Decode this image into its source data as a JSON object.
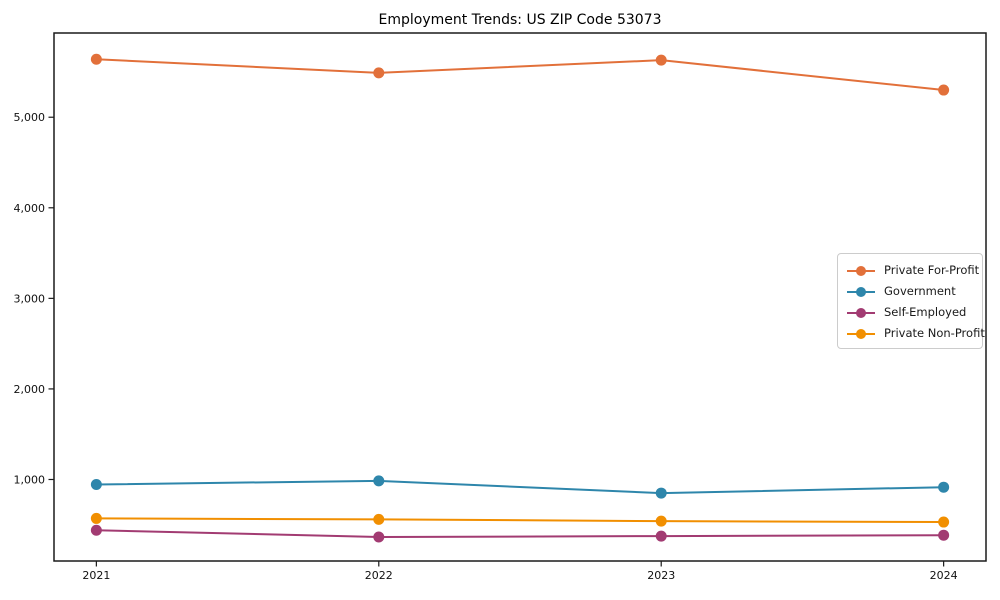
{
  "chart_data": {
    "type": "line",
    "title": "Employment Trends: US ZIP Code 53073",
    "x": [
      2021,
      2022,
      2023,
      2024
    ],
    "xtick_labels": [
      "2021",
      "2022",
      "2023",
      "2024"
    ],
    "yticks": [
      1000,
      2000,
      3000,
      4000,
      5000
    ],
    "ytick_labels": [
      "1,000",
      "2,000",
      "3,000",
      "4,000",
      "5,000"
    ],
    "xlim": [
      2020.85,
      2024.15
    ],
    "ylim": [
      100,
      5930
    ],
    "grid": false,
    "legend_position": "center-right",
    "axis_color": "#1a1a1a",
    "series": [
      {
        "name": "Private For-Profit",
        "color": "#E2703A",
        "values": [
          5640,
          5490,
          5630,
          5300
        ]
      },
      {
        "name": "Government",
        "color": "#2E86AB",
        "values": [
          945,
          985,
          850,
          915
        ]
      },
      {
        "name": "Self-Employed",
        "color": "#A23B72",
        "values": [
          440,
          365,
          375,
          385
        ]
      },
      {
        "name": "Private Non-Profit",
        "color": "#F18F01",
        "values": [
          570,
          560,
          540,
          530
        ]
      }
    ]
  }
}
